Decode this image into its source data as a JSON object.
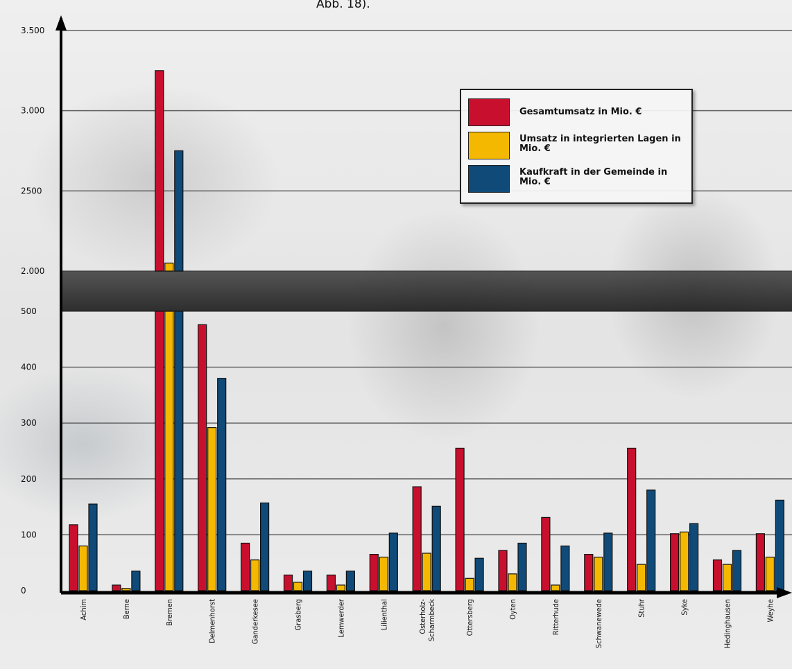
{
  "figure_note": "Abb. 18).",
  "chart_data": {
    "type": "bar",
    "broken_axis": true,
    "lower_ylim": [
      0,
      500
    ],
    "upper_ylim": [
      2000,
      3500
    ],
    "y_ticks_lower": [
      {
        "value": 0,
        "label": "0"
      },
      {
        "value": 100,
        "label": "100"
      },
      {
        "value": 200,
        "label": "200"
      },
      {
        "value": 300,
        "label": "300"
      },
      {
        "value": 400,
        "label": "400"
      },
      {
        "value": 500,
        "label": "500"
      }
    ],
    "y_ticks_upper": [
      {
        "value": 2000,
        "label": "2.000"
      },
      {
        "value": 2500,
        "label": "2500"
      },
      {
        "value": 3000,
        "label": "3.000"
      },
      {
        "value": 3500,
        "label": "3.500"
      }
    ],
    "categories": [
      "Achim",
      "Berne",
      "Bremen",
      "Delmenhorst",
      "Ganderkesee",
      "Grasberg",
      "Lemwerder",
      "Lilienthal",
      "Osterholz-\nScharmbeck",
      "Ottersberg",
      "Oyten",
      "Ritterhude",
      "Schwanewede",
      "Stuhr",
      "Syke",
      "Hedinghausen",
      "Weyhe"
    ],
    "series": [
      {
        "name": "Gesamtumsatz in Mio. €",
        "color": "#c8102e",
        "values": [
          118,
          10,
          3250,
          476,
          85,
          28,
          28,
          65,
          186,
          255,
          72,
          131,
          65,
          255,
          102,
          55,
          102
        ]
      },
      {
        "name": "Umsatz in integrierten Lagen in Mio. €",
        "color": "#f5b800",
        "values": [
          80,
          4,
          2050,
          292,
          55,
          15,
          10,
          60,
          67,
          22,
          30,
          10,
          60,
          47,
          105,
          47,
          60
        ]
      },
      {
        "name": "Kaufkraft in der Gemeinde in Mio. €",
        "color": "#0f4a78",
        "values": [
          155,
          35,
          2750,
          380,
          157,
          35,
          35,
          103,
          151,
          58,
          85,
          80,
          103,
          180,
          120,
          72,
          162
        ]
      }
    ],
    "legend": {
      "position": "top-right",
      "items": [
        {
          "label": "Gesamtumsatz in Mio. €",
          "color": "#c8102e"
        },
        {
          "label": "Umsatz in integrierten Lagen in Mio. €",
          "color": "#f5b800"
        },
        {
          "label": "Kaufkraft in der Gemeinde in Mio. €",
          "color": "#0f4a78"
        }
      ]
    },
    "grid": true
  }
}
